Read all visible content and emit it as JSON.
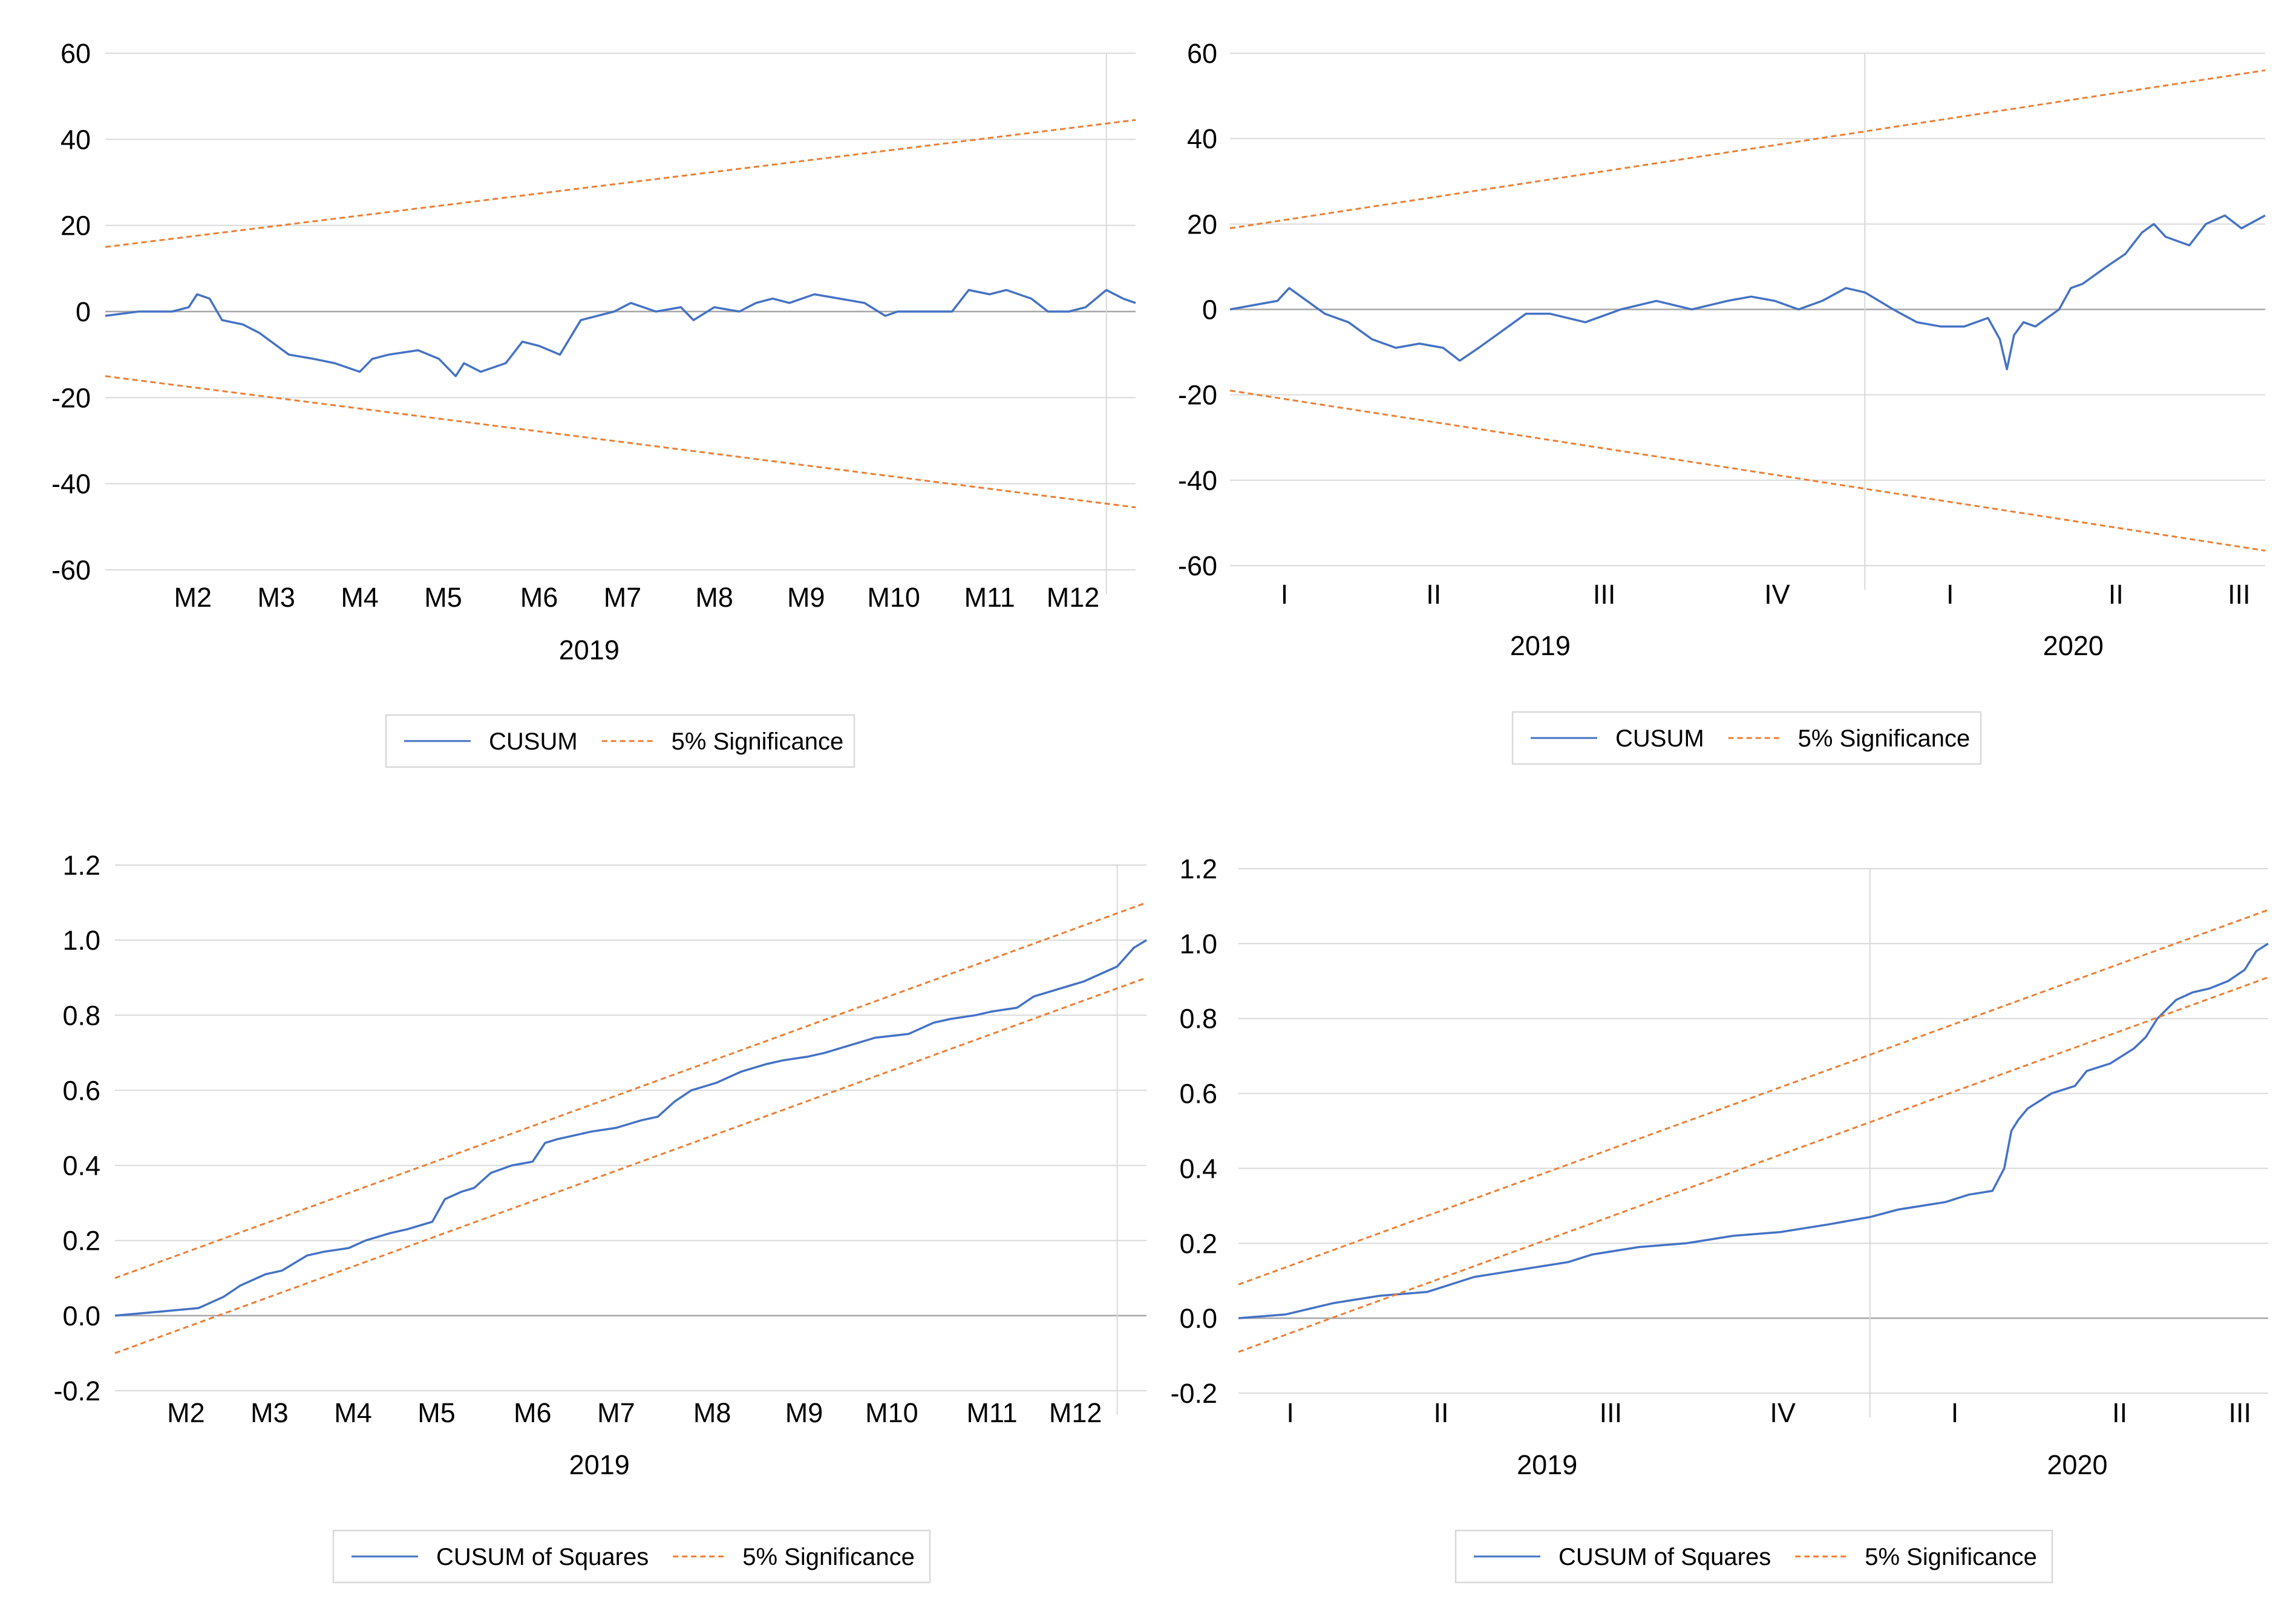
{
  "colors": {
    "cusum": "#4472C4",
    "significance": "#ED7D31",
    "grid": "#D9D9D9",
    "zero": "#A6A6A6",
    "text": "#000000"
  },
  "chart_data": [
    {
      "id": "cusum-2019",
      "type": "line",
      "title": "",
      "ylim": [
        -60,
        60
      ],
      "yticks": [
        60,
        40,
        20,
        0,
        -20,
        -40,
        -60
      ],
      "ytick_labels": [
        "60",
        "40",
        "20",
        "0",
        "-20",
        "-40",
        "-60"
      ],
      "xlim": [
        0,
        247
      ],
      "xticks": [
        {
          "label": "M2",
          "x": 21
        },
        {
          "label": "M3",
          "x": 41
        },
        {
          "label": "M4",
          "x": 61
        },
        {
          "label": "M5",
          "x": 81
        },
        {
          "label": "M6",
          "x": 104
        },
        {
          "label": "M7",
          "x": 124
        },
        {
          "label": "M8",
          "x": 146
        },
        {
          "label": "M9",
          "x": 168
        },
        {
          "label": "M10",
          "x": 189
        },
        {
          "label": "M11",
          "x": 212
        },
        {
          "label": "M12",
          "x": 232
        }
      ],
      "year_labels": [
        {
          "label": "2019",
          "x": 116
        }
      ],
      "vline": 240,
      "zero_line": 0,
      "legend": {
        "position": "bottom",
        "entries": [
          "CUSUM",
          "5% Significance"
        ]
      },
      "series": [
        {
          "name": "CUSUM",
          "style": "solid",
          "x": [
            0,
            8,
            16,
            20,
            22,
            25,
            28,
            33,
            37,
            44,
            50,
            55,
            61,
            64,
            68,
            75,
            80,
            84,
            86,
            90,
            96,
            100,
            104,
            109,
            114,
            118,
            122,
            126,
            132,
            138,
            141,
            146,
            152,
            156,
            160,
            164,
            170,
            176,
            182,
            187,
            190,
            196,
            203,
            207,
            212,
            216,
            222,
            226,
            231,
            235,
            240,
            244,
            247
          ],
          "y": [
            -1,
            0,
            0,
            1,
            4,
            3,
            -2,
            -3,
            -5,
            -10,
            -11,
            -12,
            -14,
            -11,
            -10,
            -9,
            -11,
            -15,
            -12,
            -14,
            -12,
            -7,
            -8,
            -10,
            -2,
            -1,
            0,
            2,
            0,
            1,
            -2,
            1,
            0,
            2,
            3,
            2,
            4,
            3,
            2,
            -1,
            0,
            0,
            0,
            5,
            4,
            5,
            3,
            0,
            0,
            1,
            5,
            3,
            2
          ]
        },
        {
          "name": "5% Significance upper",
          "style": "dashed",
          "x": [
            0,
            247
          ],
          "y": [
            15,
            44.5
          ]
        },
        {
          "name": "5% Significance lower",
          "style": "dashed",
          "x": [
            0,
            247
          ],
          "y": [
            -15,
            -45.5
          ]
        }
      ]
    },
    {
      "id": "cusum-2019-2020",
      "type": "line",
      "title": "",
      "ylim": [
        -60,
        60
      ],
      "yticks": [
        60,
        40,
        20,
        0,
        -20,
        -40,
        -60
      ],
      "ytick_labels": [
        "60",
        "40",
        "20",
        "0",
        "-20",
        "-40",
        "-60"
      ],
      "xlim": [
        0,
        437
      ],
      "xticks": [
        {
          "label": "I",
          "x": 23
        },
        {
          "label": "II",
          "x": 86
        },
        {
          "label": "III",
          "x": 158
        },
        {
          "label": "IV",
          "x": 231
        },
        {
          "label": "I",
          "x": 304
        },
        {
          "label": "II",
          "x": 374
        },
        {
          "label": "III",
          "x": 426
        }
      ],
      "year_labels": [
        {
          "label": "2019",
          "x": 131
        },
        {
          "label": "2020",
          "x": 356
        }
      ],
      "vline": 268,
      "zero_line": 0,
      "legend": {
        "position": "bottom",
        "entries": [
          "CUSUM",
          "5% Significance"
        ]
      },
      "series": [
        {
          "name": "CUSUM",
          "style": "solid",
          "x": [
            0,
            10,
            20,
            25,
            30,
            40,
            50,
            60,
            70,
            80,
            90,
            97,
            105,
            115,
            125,
            135,
            150,
            165,
            180,
            195,
            210,
            220,
            230,
            240,
            250,
            260,
            268,
            280,
            290,
            300,
            310,
            320,
            325,
            328,
            331,
            335,
            340,
            345,
            350,
            355,
            360,
            370,
            378,
            385,
            390,
            395,
            405,
            412,
            420,
            427,
            437
          ],
          "y": [
            0,
            1,
            2,
            5,
            3,
            -1,
            -3,
            -7,
            -9,
            -8,
            -9,
            -12,
            -9,
            -5,
            -1,
            -1,
            -3,
            0,
            2,
            0,
            2,
            3,
            2,
            0,
            2,
            5,
            4,
            0,
            -3,
            -4,
            -4,
            -2,
            -7,
            -14,
            -6,
            -3,
            -4,
            -2,
            0,
            5,
            6,
            10,
            13,
            18,
            20,
            17,
            15,
            20,
            22,
            19,
            22
          ]
        },
        {
          "name": "5% Significance upper",
          "style": "dashed",
          "x": [
            0,
            437
          ],
          "y": [
            19,
            56
          ]
        },
        {
          "name": "5% Significance lower",
          "style": "dashed",
          "x": [
            0,
            437
          ],
          "y": [
            -19,
            -56.5
          ]
        }
      ]
    },
    {
      "id": "cusumsq-2019",
      "type": "line",
      "title": "",
      "ylim": [
        -0.2,
        1.2
      ],
      "yticks": [
        1.2,
        1.0,
        0.8,
        0.6,
        0.4,
        0.2,
        0.0,
        -0.2
      ],
      "ytick_labels": [
        "1.2",
        "1.0",
        "0.8",
        "0.6",
        "0.4",
        "0.2",
        "0.0",
        "-0.2"
      ],
      "xlim": [
        0,
        247
      ],
      "xticks": [
        {
          "label": "M2",
          "x": 17
        },
        {
          "label": "M3",
          "x": 37
        },
        {
          "label": "M4",
          "x": 57
        },
        {
          "label": "M5",
          "x": 77
        },
        {
          "label": "M6",
          "x": 100
        },
        {
          "label": "M7",
          "x": 120
        },
        {
          "label": "M8",
          "x": 143
        },
        {
          "label": "M9",
          "x": 165
        },
        {
          "label": "M10",
          "x": 186
        },
        {
          "label": "M11",
          "x": 210
        },
        {
          "label": "M12",
          "x": 230
        }
      ],
      "year_labels": [
        {
          "label": "2019",
          "x": 116
        }
      ],
      "vline": 240,
      "zero_line": 0,
      "legend": {
        "position": "bottom",
        "entries": [
          "CUSUM of Squares",
          "5% Significance"
        ]
      },
      "series": [
        {
          "name": "CUSUM of Squares",
          "style": "solid",
          "x": [
            0,
            10,
            20,
            26,
            30,
            36,
            40,
            46,
            50,
            56,
            60,
            66,
            70,
            76,
            79,
            83,
            86,
            90,
            95,
            100,
            103,
            106,
            110,
            114,
            120,
            126,
            130,
            134,
            138,
            144,
            150,
            156,
            160,
            166,
            170,
            176,
            182,
            190,
            196,
            200,
            206,
            210,
            216,
            220,
            226,
            232,
            236,
            240,
            244,
            247
          ],
          "y": [
            0,
            0.01,
            0.02,
            0.05,
            0.08,
            0.11,
            0.12,
            0.16,
            0.17,
            0.18,
            0.2,
            0.22,
            0.23,
            0.25,
            0.31,
            0.33,
            0.34,
            0.38,
            0.4,
            0.41,
            0.46,
            0.47,
            0.48,
            0.49,
            0.5,
            0.52,
            0.53,
            0.57,
            0.6,
            0.62,
            0.65,
            0.67,
            0.68,
            0.69,
            0.7,
            0.72,
            0.74,
            0.75,
            0.78,
            0.79,
            0.8,
            0.81,
            0.82,
            0.85,
            0.87,
            0.89,
            0.91,
            0.93,
            0.98,
            1.0
          ]
        },
        {
          "name": "5% Significance upper",
          "style": "dashed",
          "x": [
            0,
            247
          ],
          "y": [
            0.1,
            1.1
          ]
        },
        {
          "name": "5% Significance lower",
          "style": "dashed",
          "x": [
            0,
            247
          ],
          "y": [
            -0.1,
            0.9
          ]
        }
      ]
    },
    {
      "id": "cusumsq-2019-2020",
      "type": "line",
      "title": "",
      "ylim": [
        -0.2,
        1.2
      ],
      "yticks": [
        1.2,
        1.0,
        0.8,
        0.6,
        0.4,
        0.2,
        0.0,
        -0.2
      ],
      "ytick_labels": [
        "1.2",
        "1.0",
        "0.8",
        "0.6",
        "0.4",
        "0.2",
        "0.0",
        "-0.2"
      ],
      "xlim": [
        0,
        437
      ],
      "xticks": [
        {
          "label": "I",
          "x": 22
        },
        {
          "label": "II",
          "x": 86
        },
        {
          "label": "III",
          "x": 158
        },
        {
          "label": "IV",
          "x": 231
        },
        {
          "label": "I",
          "x": 304
        },
        {
          "label": "II",
          "x": 374
        },
        {
          "label": "III",
          "x": 425
        }
      ],
      "year_labels": [
        {
          "label": "2019",
          "x": 131
        },
        {
          "label": "2020",
          "x": 356
        }
      ],
      "vline": 268,
      "zero_line": 0,
      "legend": {
        "position": "bottom",
        "entries": [
          "CUSUM of Squares",
          "5% Significance"
        ]
      },
      "series": [
        {
          "name": "CUSUM of Squares",
          "style": "solid",
          "x": [
            0,
            20,
            40,
            60,
            80,
            90,
            100,
            110,
            120,
            140,
            150,
            170,
            190,
            210,
            230,
            250,
            268,
            280,
            300,
            310,
            320,
            325,
            328,
            331,
            335,
            340,
            345,
            355,
            360,
            370,
            380,
            385,
            390,
            398,
            405,
            412,
            420,
            427,
            432,
            437
          ],
          "y": [
            0,
            0.01,
            0.04,
            0.06,
            0.07,
            0.09,
            0.11,
            0.12,
            0.13,
            0.15,
            0.17,
            0.19,
            0.2,
            0.22,
            0.23,
            0.25,
            0.27,
            0.29,
            0.31,
            0.33,
            0.34,
            0.4,
            0.5,
            0.53,
            0.56,
            0.58,
            0.6,
            0.62,
            0.66,
            0.68,
            0.72,
            0.75,
            0.8,
            0.85,
            0.87,
            0.88,
            0.9,
            0.93,
            0.98,
            1.0
          ]
        },
        {
          "name": "5% Significance upper",
          "style": "dashed",
          "x": [
            0,
            437
          ],
          "y": [
            0.09,
            1.09
          ]
        },
        {
          "name": "5% Significance lower",
          "style": "dashed",
          "x": [
            0,
            437
          ],
          "y": [
            -0.09,
            0.91
          ]
        }
      ]
    }
  ]
}
